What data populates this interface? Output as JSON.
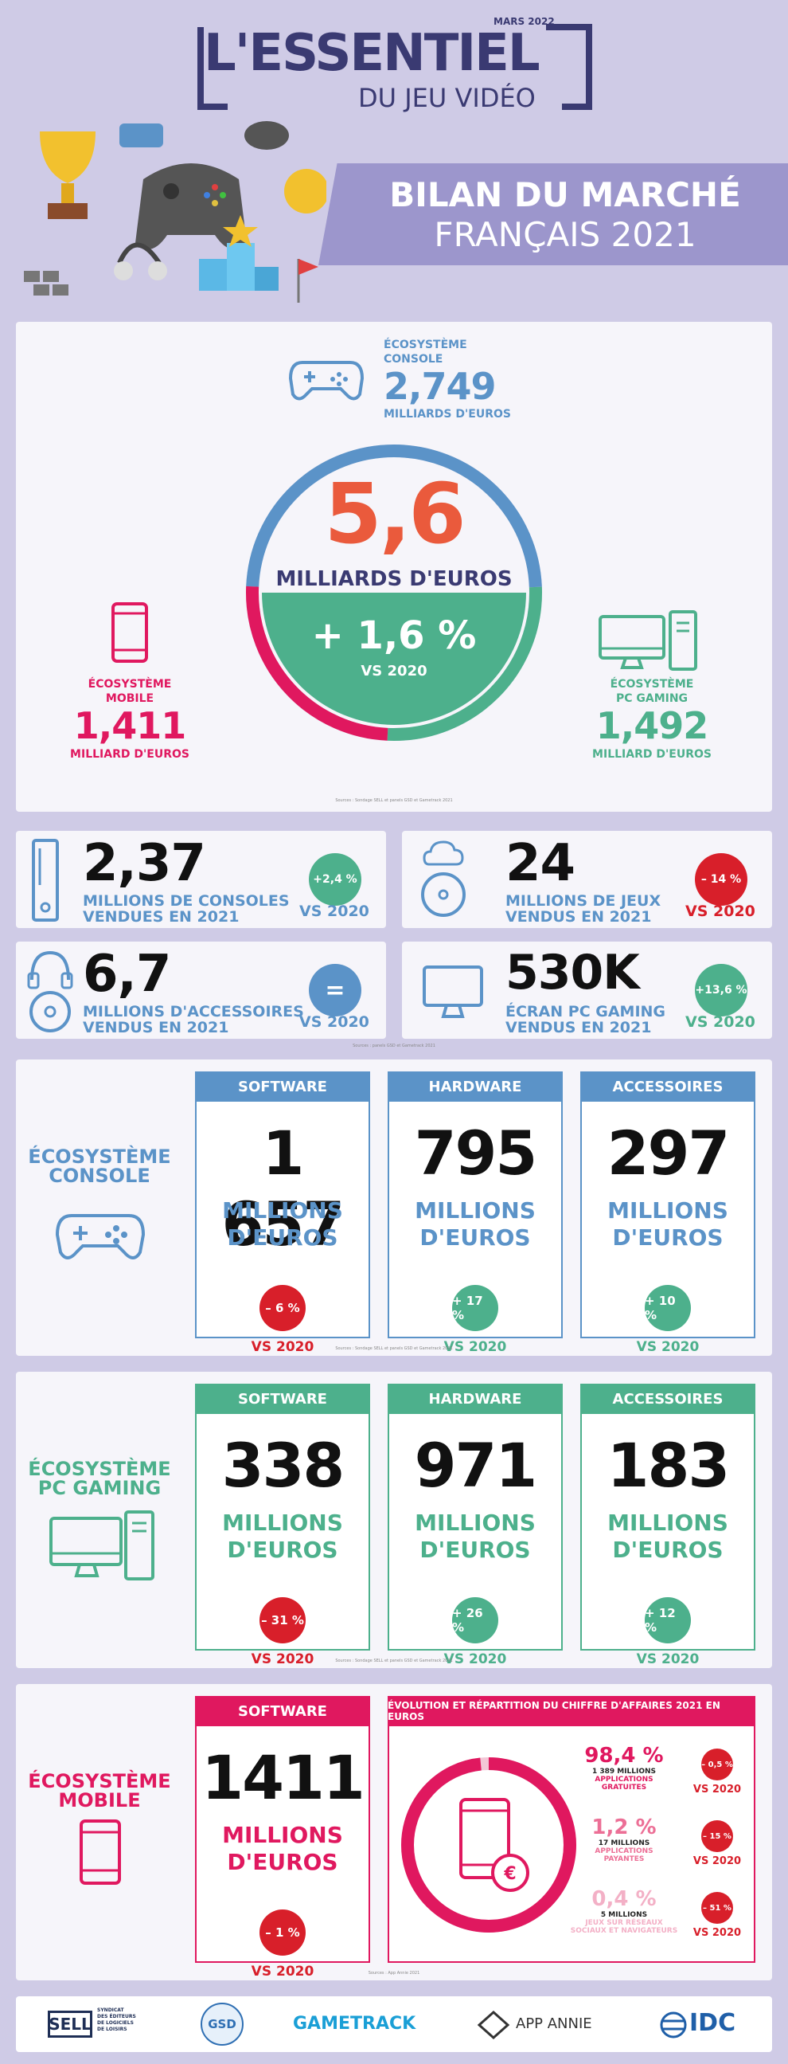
{
  "header": {
    "date": "MARS 2022",
    "title": "L'ESSENTIEL",
    "subtitle": "DU JEU VIDÉO",
    "banner_line1": "BILAN DU MARCHÉ",
    "banner_line2": "FRANÇAIS 2021"
  },
  "overview": {
    "total": "5,6",
    "total_unit": "MILLIARDS  D'EUROS",
    "growth": "+ 1,6 %",
    "growth_vs": "VS 2020",
    "console_label1": "ÉCOSYSTÈME",
    "console_label2": "CONSOLE",
    "console_value": "2,749",
    "console_unit": "MILLIARDS D'EUROS",
    "mobile_label1": "ÉCOSYSTÈME",
    "mobile_label2": "MOBILE",
    "mobile_value": "1,411",
    "mobile_unit": "MILLIARD D'EUROS",
    "pc_label1": "ÉCOSYSTÈME",
    "pc_label2": "PC GAMING",
    "pc_value": "1,492",
    "pc_unit": "MILLIARD D'EUROS",
    "source": "Sources : Sondage SELL et panels GSD et Gametrack 2021"
  },
  "stats": {
    "consoles": {
      "value": "2,37",
      "line1": "MILLIONS DE CONSOLES",
      "line2": "VENDUES EN 2021",
      "badge": "+2,4 %",
      "vs": "VS 2020"
    },
    "games": {
      "value": "24",
      "line1": "MILLIONS DE JEUX",
      "line2": "VENDUS EN 2021",
      "badge": "– 14 %",
      "vs": "VS 2020"
    },
    "accessories": {
      "value": "6,7",
      "line1": "MILLIONS D'ACCESSOIRES",
      "line2": "VENDUS EN 2021",
      "badge": "=",
      "vs": "VS 2020"
    },
    "screens": {
      "value": "530K",
      "line1": "ÉCRAN PC GAMING",
      "line2": "VENDUS EN 2021",
      "badge": "+13,6 %",
      "vs": "VS 2020"
    },
    "source": "Sources : panels GSD et Gametrack 2021"
  },
  "console_section": {
    "label1": "ÉCOSYSTÈME",
    "label2": "CONSOLE",
    "cards": [
      {
        "head": "SOFTWARE",
        "value": "1 657",
        "unit1": "MILLIONS",
        "unit2": "D'EUROS",
        "badge": "– 6 %",
        "vs": "VS 2020"
      },
      {
        "head": "HARDWARE",
        "value": "795",
        "unit1": "MILLIONS",
        "unit2": "D'EUROS",
        "badge": "+ 17 %",
        "vs": "VS 2020"
      },
      {
        "head": "ACCESSOIRES",
        "value": "297",
        "unit1": "MILLIONS",
        "unit2": "D'EUROS",
        "badge": "+ 10 %",
        "vs": "VS 2020"
      }
    ],
    "source": "Sources : Sondage SELL et panels GSD et Gametrack 2021"
  },
  "pc_section": {
    "label1": "ÉCOSYSTÈME",
    "label2": "PC GAMING",
    "cards": [
      {
        "head": "SOFTWARE",
        "value": "338",
        "unit1": "MILLIONS",
        "unit2": "D'EUROS",
        "badge": "– 31 %",
        "vs": "VS 2020"
      },
      {
        "head": "HARDWARE",
        "value": "971",
        "unit1": "MILLIONS",
        "unit2": "D'EUROS",
        "badge": "+ 26 %",
        "vs": "VS 2020"
      },
      {
        "head": "ACCESSOIRES",
        "value": "183",
        "unit1": "MILLIONS",
        "unit2": "D'EUROS",
        "badge": "+ 12 %",
        "vs": "VS 2020"
      }
    ],
    "source": "Sources : Sondage SELL et panels GSD et Gametrack 2021"
  },
  "mobile_section": {
    "label1": "ÉCOSYSTÈME",
    "label2": "MOBILE",
    "card": {
      "head": "SOFTWARE",
      "value": "1411",
      "unit1": "MILLIONS",
      "unit2": "D'EUROS",
      "badge": "– 1 %",
      "vs": "VS 2020"
    },
    "breakdown_head": "ÉVOLUTION ET RÉPARTITION DU CHIFFRE D'AFFAIRES 2021 EN EUROS",
    "rows": [
      {
        "pct": "98,4 %",
        "detail1": "1 389 MILLIONS",
        "detail2": "APPLICATIONS",
        "detail3": "GRATUITES",
        "badge": "– 0,5 %",
        "vs": "VS 2020"
      },
      {
        "pct": "1,2 %",
        "detail1": "17 MILLIONS",
        "detail2": "APPLICATIONS",
        "detail3": "PAYANTES",
        "badge": "– 15 %",
        "vs": "VS 2020"
      },
      {
        "pct": "0,4 %",
        "detail1": "5 MILLIONS",
        "detail2": "JEUX SUR RÉSEAUX",
        "detail3": "SOCIAUX ET NAVIGATEURS",
        "badge": "– 51 %",
        "vs": "VS 2020"
      }
    ],
    "source": "Sources : App Annie 2021"
  },
  "footer": {
    "sell1": "SYNDICAT",
    "sell2": "DES ÉDITEURS",
    "sell3": "DE LOGICIELS",
    "sell4": "DE LOISIRS",
    "gsd": "GSD",
    "gametrack": "GAMETRACK",
    "appannie": "APP ANNIE",
    "idc": "IDC"
  },
  "colors": {
    "console": "#5b93c8",
    "pc": "#4db08c",
    "mobile": "#e0185f",
    "negative": "#d81f2a",
    "navy": "#3a3a72",
    "orange": "#ea5a3c"
  }
}
